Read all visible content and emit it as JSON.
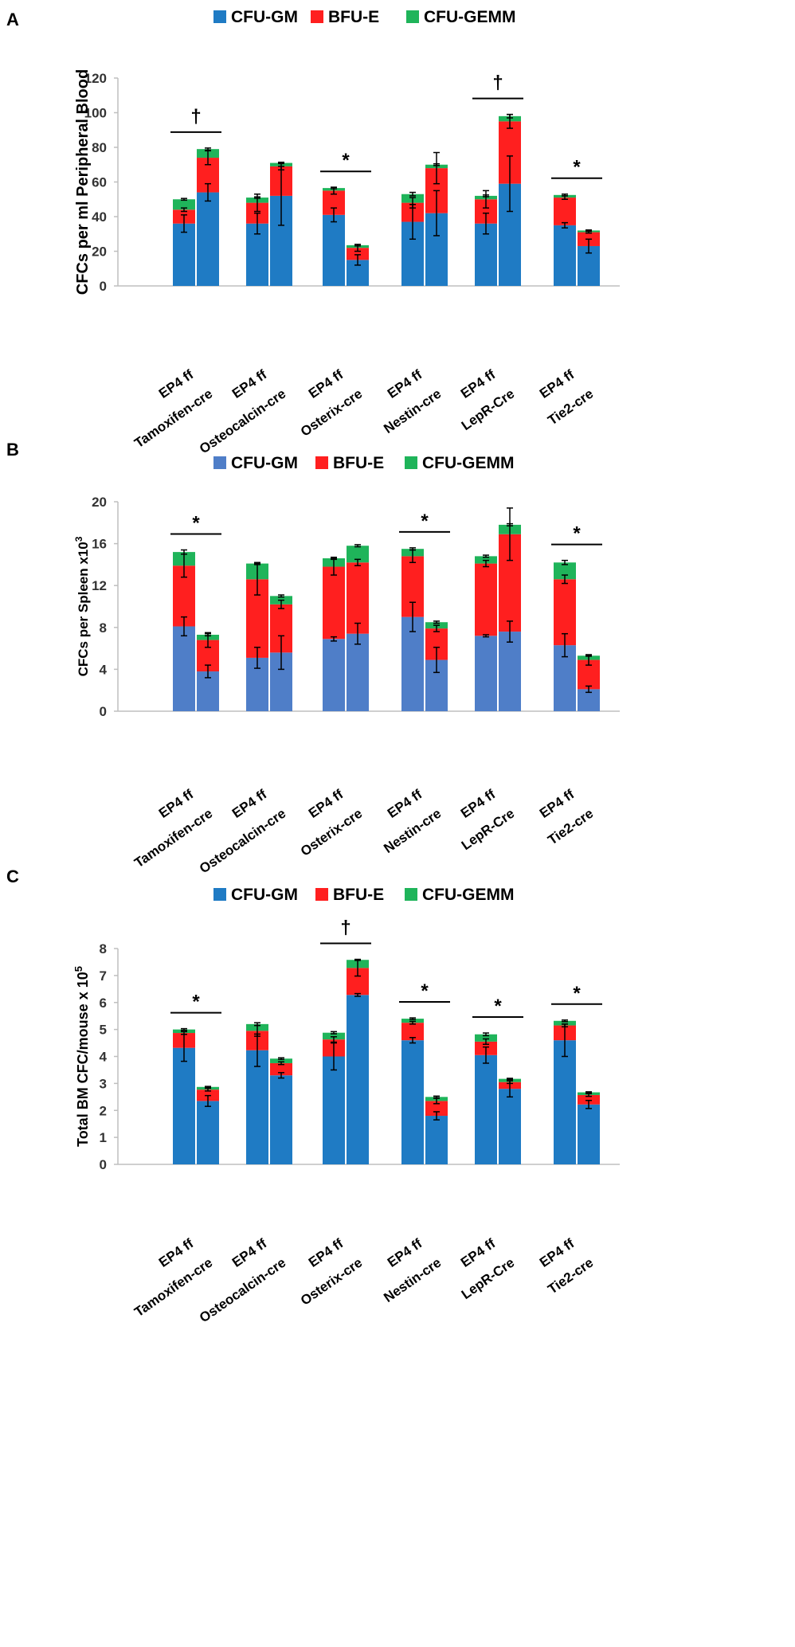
{
  "chart_data": [
    {
      "panel": "A",
      "type": "bar",
      "stacked": true,
      "legend": [
        "CFU-GM",
        "BFU-E",
        "CFU-GEMM"
      ],
      "ylabel": "CFCs per ml Peripheral Blood",
      "ylim": [
        0,
        120
      ],
      "yticks": [
        0,
        20,
        40,
        60,
        80,
        100,
        120
      ],
      "colors": {
        "CFU-GM": "#1f7bc4",
        "BFU-E": "#ff1f1f",
        "CFU-GEMM": "#1fb45a"
      },
      "groups": [
        {
          "label": "EP4 ff",
          "cre": "Tamoxifen-cre",
          "sig": "†"
        },
        {
          "label": "EP4 ff",
          "cre": "Osteocalcin-cre",
          "sig": ""
        },
        {
          "label": "EP4 ff",
          "cre": "Osterix-cre",
          "sig": "*"
        },
        {
          "label": "EP4 ff",
          "cre": "Nestin-cre",
          "sig": ""
        },
        {
          "label": "EP4 ff",
          "cre": "LepR-Cre",
          "sig": "†"
        },
        {
          "label": "EP4 ff",
          "cre": "Tie2-cre",
          "sig": "*"
        }
      ],
      "bars": [
        {
          "gm": 36,
          "gm_err": 5,
          "bfu": 8,
          "bfu_err": 1,
          "gemm": 6,
          "gemm_err": 0.5
        },
        {
          "gm": 54,
          "gm_err": 5,
          "bfu": 20,
          "bfu_err": 4,
          "gemm": 5,
          "gemm_err": 0.6
        },
        {
          "gm": 36,
          "gm_err": 6,
          "bfu": 12,
          "bfu_err": 5,
          "gemm": 3,
          "gemm_err": 0.4
        },
        {
          "gm": 52,
          "gm_err": 17,
          "bfu": 17,
          "bfu_err": 2,
          "gemm": 2,
          "gemm_err": 0.4
        },
        {
          "gm": 41,
          "gm_err": 4,
          "bfu": 14,
          "bfu_err": 2,
          "gemm": 1.5,
          "gemm_err": 0.4
        },
        {
          "gm": 15,
          "gm_err": 3,
          "bfu": 7,
          "bfu_err": 2,
          "gemm": 1.5,
          "gemm_err": 0.4
        },
        {
          "gm": 37,
          "gm_err": 10,
          "bfu": 11,
          "bfu_err": 3,
          "gemm": 5,
          "gemm_err": 1
        },
        {
          "gm": 42,
          "gm_err": 13,
          "bfu": 26,
          "bfu_err": 9,
          "gemm": 2,
          "gemm_err": 0.5
        },
        {
          "gm": 36,
          "gm_err": 6,
          "bfu": 14,
          "bfu_err": 5,
          "gemm": 2,
          "gemm_err": 0.5
        },
        {
          "gm": 59,
          "gm_err": 16,
          "bfu": 36,
          "bfu_err": 4,
          "gemm": 3,
          "gemm_err": 1
        },
        {
          "gm": 35,
          "gm_err": 1.5,
          "bfu": 16,
          "bfu_err": 1,
          "gemm": 1.5,
          "gemm_err": 0.5
        },
        {
          "gm": 23,
          "gm_err": 4,
          "bfu": 8,
          "bfu_err": 0.5,
          "gemm": 1,
          "gemm_err": 0.3
        }
      ]
    },
    {
      "panel": "B",
      "type": "bar",
      "stacked": true,
      "legend": [
        "CFU-GM",
        "BFU-E",
        "CFU-GEMM"
      ],
      "ylabel": "CFCs per Spleen x10",
      "ylabel_sup": "3",
      "ylim": [
        0,
        20
      ],
      "yticks": [
        0,
        4,
        8,
        12,
        16,
        20
      ],
      "colors": {
        "CFU-GM": "#4f7ec8",
        "BFU-E": "#ff1f1f",
        "CFU-GEMM": "#1fb45a"
      },
      "groups": [
        {
          "label": "EP4 ff",
          "cre": "Tamoxifen-cre",
          "sig": "*"
        },
        {
          "label": "EP4 ff",
          "cre": "Osteocalcin-cre",
          "sig": ""
        },
        {
          "label": "EP4 ff",
          "cre": "Osterix-cre",
          "sig": ""
        },
        {
          "label": "EP4 ff",
          "cre": "Nestin-cre",
          "sig": "*"
        },
        {
          "label": "EP4 ff",
          "cre": "LepR-Cre",
          "sig": ""
        },
        {
          "label": "EP4 ff",
          "cre": "Tie2-cre",
          "sig": "*"
        }
      ],
      "bars": [
        {
          "gm": 8.1,
          "gm_err": 0.9,
          "bfu": 5.8,
          "bfu_err": 1.1,
          "gemm": 1.3,
          "gemm_err": 0.2
        },
        {
          "gm": 3.8,
          "gm_err": 0.6,
          "bfu": 3.0,
          "bfu_err": 0.7,
          "gemm": 0.5,
          "gemm_err": 0.1
        },
        {
          "gm": 5.1,
          "gm_err": 1.0,
          "bfu": 7.5,
          "bfu_err": 1.5,
          "gemm": 1.5,
          "gemm_err": 0.1
        },
        {
          "gm": 5.6,
          "gm_err": 1.6,
          "bfu": 4.6,
          "bfu_err": 0.4,
          "gemm": 0.8,
          "gemm_err": 0.1
        },
        {
          "gm": 6.9,
          "gm_err": 0.2,
          "bfu": 6.9,
          "bfu_err": 0.8,
          "gemm": 0.8,
          "gemm_err": 0.1
        },
        {
          "gm": 7.4,
          "gm_err": 1.0,
          "bfu": 6.8,
          "bfu_err": 0.3,
          "gemm": 1.6,
          "gemm_err": 0.1
        },
        {
          "gm": 9.0,
          "gm_err": 1.4,
          "bfu": 5.8,
          "bfu_err": 0.6,
          "gemm": 0.7,
          "gemm_err": 0.1
        },
        {
          "gm": 4.9,
          "gm_err": 1.2,
          "bfu": 3.0,
          "bfu_err": 0.3,
          "gemm": 0.6,
          "gemm_err": 0.1
        },
        {
          "gm": 7.2,
          "gm_err": 0.1,
          "bfu": 6.9,
          "bfu_err": 0.3,
          "gemm": 0.7,
          "gemm_err": 0.1
        },
        {
          "gm": 7.6,
          "gm_err": 1.0,
          "bfu": 9.3,
          "bfu_err": 2.5,
          "gemm": 0.9,
          "gemm_err": 0.1
        },
        {
          "gm": 6.3,
          "gm_err": 1.1,
          "bfu": 6.3,
          "bfu_err": 0.4,
          "gemm": 1.6,
          "gemm_err": 0.2
        },
        {
          "gm": 2.1,
          "gm_err": 0.3,
          "bfu": 2.8,
          "bfu_err": 0.5,
          "gemm": 0.4,
          "gemm_err": 0.05
        }
      ]
    },
    {
      "panel": "C",
      "type": "bar",
      "stacked": true,
      "legend": [
        "CFU-GM",
        "BFU-E",
        "CFU-GEMM"
      ],
      "ylabel": "Total BM CFC/mouse x 10",
      "ylabel_sup": "5",
      "ylim": [
        0,
        8
      ],
      "yticks": [
        0,
        1,
        2,
        3,
        4,
        5,
        6,
        7,
        8
      ],
      "colors": {
        "CFU-GM": "#1f7bc4",
        "BFU-E": "#ff1f1f",
        "CFU-GEMM": "#1fb45a"
      },
      "groups": [
        {
          "label": "EP4 ff",
          "cre": "Tamoxifen-cre",
          "sig": "*"
        },
        {
          "label": "EP4 ff",
          "cre": "Osteocalcin-cre",
          "sig": ""
        },
        {
          "label": "EP4 ff",
          "cre": "Osterix-cre",
          "sig": "†"
        },
        {
          "label": "EP4 ff",
          "cre": "Nestin-cre",
          "sig": "*"
        },
        {
          "label": "EP4 ff",
          "cre": "LepR-Cre",
          "sig": "*"
        },
        {
          "label": "EP4 ff",
          "cre": "Tie2-cre",
          "sig": "*"
        }
      ],
      "bars": [
        {
          "gm": 4.32,
          "gm_err": 0.5,
          "bfu": 0.55,
          "bfu_err": 0.05,
          "gemm": 0.13,
          "gemm_err": 0.03
        },
        {
          "gm": 2.35,
          "gm_err": 0.2,
          "bfu": 0.42,
          "bfu_err": 0.05,
          "gemm": 0.1,
          "gemm_err": 0.02
        },
        {
          "gm": 4.23,
          "gm_err": 0.6,
          "bfu": 0.72,
          "bfu_err": 0.2,
          "gemm": 0.25,
          "gemm_err": 0.05
        },
        {
          "gm": 3.3,
          "gm_err": 0.1,
          "bfu": 0.45,
          "bfu_err": 0.05,
          "gemm": 0.17,
          "gemm_err": 0.03
        },
        {
          "gm": 4.0,
          "gm_err": 0.5,
          "bfu": 0.63,
          "bfu_err": 0.1,
          "gemm": 0.25,
          "gemm_err": 0.04
        },
        {
          "gm": 6.28,
          "gm_err": 0.05,
          "bfu": 1.0,
          "bfu_err": 0.3,
          "gemm": 0.3,
          "gemm_err": 0.02
        },
        {
          "gm": 4.6,
          "gm_err": 0.1,
          "bfu": 0.65,
          "bfu_err": 0.05,
          "gemm": 0.15,
          "gemm_err": 0.03
        },
        {
          "gm": 1.8,
          "gm_err": 0.15,
          "bfu": 0.55,
          "bfu_err": 0.1,
          "gemm": 0.15,
          "gemm_err": 0.03
        },
        {
          "gm": 4.05,
          "gm_err": 0.3,
          "bfu": 0.5,
          "bfu_err": 0.1,
          "gemm": 0.27,
          "gemm_err": 0.05
        },
        {
          "gm": 2.8,
          "gm_err": 0.3,
          "bfu": 0.25,
          "bfu_err": 0.05,
          "gemm": 0.12,
          "gemm_err": 0.02
        },
        {
          "gm": 4.6,
          "gm_err": 0.6,
          "bfu": 0.55,
          "bfu_err": 0.05,
          "gemm": 0.17,
          "gemm_err": 0.03
        },
        {
          "gm": 2.22,
          "gm_err": 0.15,
          "bfu": 0.35,
          "bfu_err": 0.05,
          "gemm": 0.1,
          "gemm_err": 0.02
        }
      ]
    }
  ]
}
